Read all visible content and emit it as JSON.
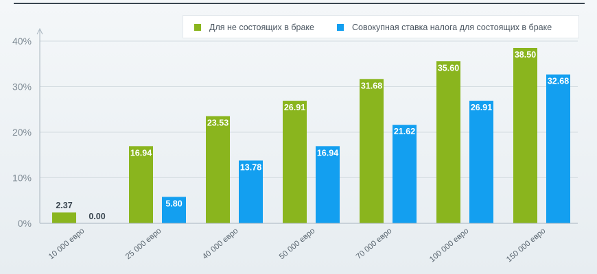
{
  "chart_data": {
    "type": "bar",
    "categories": [
      "10 000 евро",
      "25 000 евро",
      "40 000 евро",
      "50 000 евро",
      "70 000 евро",
      "100 000 евро",
      "150 000 евро"
    ],
    "series": [
      {
        "name": "Для не состоящих в браке",
        "color": "#8ab51e",
        "values": [
          2.37,
          16.94,
          23.53,
          26.91,
          31.68,
          35.6,
          38.5
        ]
      },
      {
        "name": "Совокупная ставка налога для состоящих в браке",
        "color": "#139ff0",
        "values": [
          0.0,
          5.8,
          13.78,
          16.94,
          21.62,
          26.91,
          32.68
        ]
      }
    ],
    "value_labels": [
      [
        "2.37",
        "16.94",
        "23.53",
        "26.91",
        "31.68",
        "35.60",
        "38.50"
      ],
      [
        "0.00",
        "5.80",
        "13.78",
        "16.94",
        "21.62",
        "26.91",
        "32.68"
      ]
    ],
    "ylim": [
      0,
      40
    ],
    "yticks": [
      0,
      10,
      20,
      30,
      40
    ],
    "ytick_labels": [
      "0%",
      "10%",
      "20%",
      "30%",
      "40%"
    ],
    "title": "",
    "xlabel": "",
    "ylabel": "",
    "grid": true,
    "legend_position": "top-right"
  }
}
